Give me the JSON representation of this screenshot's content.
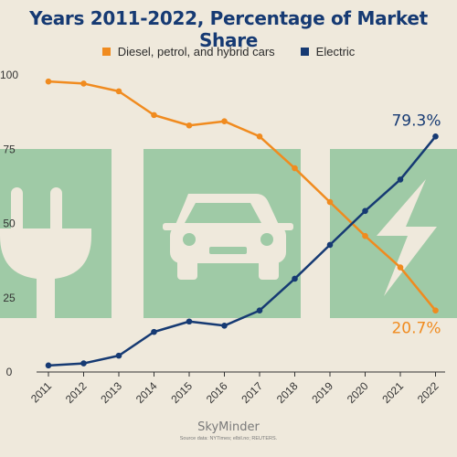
{
  "title": "Years 2011-2022, Percentage of Market Share",
  "legend": [
    {
      "label": "Diesel, petrol, and hybrid cars",
      "color": "#f08b1f"
    },
    {
      "label": "Electric",
      "color": "#163a73"
    }
  ],
  "chart_data": {
    "type": "line",
    "title": "Years 2011-2022, Percentage of Market Share",
    "categories": [
      "2011",
      "2012",
      "2013",
      "2014",
      "2015",
      "2016",
      "2017",
      "2018",
      "2019",
      "2020",
      "2021",
      "2022"
    ],
    "series": [
      {
        "name": "Diesel, petrol, and hybrid cars",
        "color": "#f08b1f",
        "values": [
          97.8,
          97.1,
          94.5,
          86.5,
          83.0,
          84.4,
          79.3,
          68.6,
          57.2,
          45.8,
          35.2,
          20.7
        ]
      },
      {
        "name": "Electric",
        "color": "#163a73",
        "values": [
          2.2,
          2.9,
          5.5,
          13.5,
          17.0,
          15.6,
          20.7,
          31.4,
          42.8,
          54.2,
          64.8,
          79.3
        ]
      }
    ],
    "yticks": [
      "0",
      "25",
      "50",
      "75",
      "100"
    ],
    "ylim": [
      0,
      100
    ],
    "annotations": [
      "79.3%",
      "20.7%"
    ],
    "grid": false,
    "legend_position": "top-center"
  },
  "branding": {
    "name": "SkyMinder",
    "source": "Source data: NYTimes; elbil.no; REUTERS."
  },
  "decor_icons": [
    "plug-icon",
    "car-icon",
    "lightning-icon"
  ],
  "panel_color": "#9fcaa6"
}
